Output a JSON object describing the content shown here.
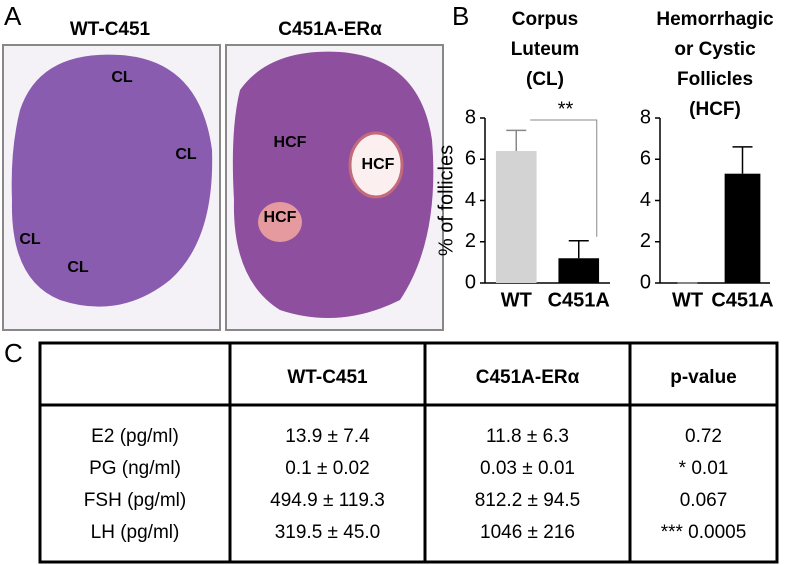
{
  "panels": {
    "a": "A",
    "b": "B",
    "c": "C"
  },
  "images": [
    {
      "title": "WT-C451",
      "labels": [
        "CL",
        "CL",
        "CL",
        "CL"
      ]
    },
    {
      "title": "C451A-ERα",
      "labels": [
        "HCF",
        "HCF",
        "HCF"
      ]
    }
  ],
  "chart_data": [
    {
      "type": "bar",
      "title": [
        "Corpus",
        "Luteum",
        "(CL)"
      ],
      "y_label": "% of follicles",
      "categories": [
        "WT",
        "C451A"
      ],
      "values": [
        6.4,
        1.2
      ],
      "errors": [
        1.0,
        0.85
      ],
      "colors": [
        "#d3d3d3",
        "#000000"
      ],
      "ylim": [
        0,
        8
      ],
      "yticks": [
        0,
        2,
        4,
        6,
        8
      ],
      "annotation": "**"
    },
    {
      "type": "bar",
      "title": [
        "Hemorrhagic",
        "or Cystic",
        "Follicles",
        "(HCF)"
      ],
      "categories": [
        "WT",
        "C451A"
      ],
      "values": [
        0,
        5.3
      ],
      "errors": [
        0,
        1.3
      ],
      "colors": [
        "#d3d3d3",
        "#000000"
      ],
      "ylim": [
        0,
        8
      ],
      "yticks": [
        0,
        2,
        4,
        6,
        8
      ]
    }
  ],
  "table": {
    "header": [
      "WT-C451",
      "C451A-ERα",
      "p-value"
    ],
    "rows": [
      [
        "E2 (pg/ml)",
        "13.9 ± 7.4",
        "11.8 ± 6.3",
        "0.72"
      ],
      [
        "PG (ng/ml)",
        "0.1 ± 0.02",
        "0.03 ± 0.01",
        "* 0.01"
      ],
      [
        "FSH (pg/ml)",
        "494.9 ±  119.3",
        "812.2 ± 94.5",
        "0.067"
      ],
      [
        "LH (pg/ml)",
        "319.5 ±  45.0",
        "1046 ±  216",
        "*** 0.0005"
      ]
    ]
  }
}
